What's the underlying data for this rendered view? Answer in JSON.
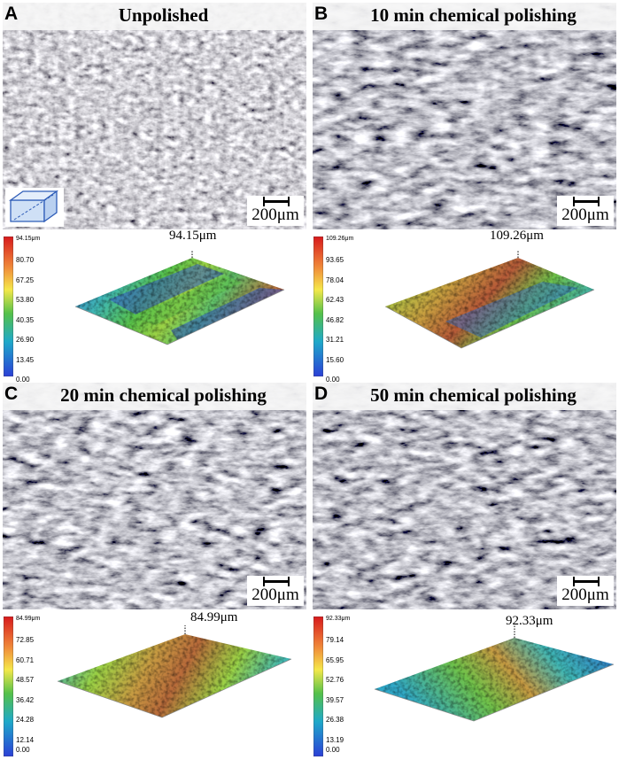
{
  "panels": [
    {
      "letter": "A",
      "title": "Unpolished",
      "scale": "200μm",
      "peak": "94.15μm",
      "colorbar_ticks": [
        "94.15μm",
        "80.70",
        "67.25",
        "53.80",
        "40.35",
        "26.90",
        "13.45",
        "0.00"
      ],
      "has_inset": true
    },
    {
      "letter": "B",
      "title": "10 min chemical polishing",
      "scale": "200μm",
      "peak": "109.26μm",
      "colorbar_ticks": [
        "109.26μm",
        "93.65",
        "78.04",
        "62.43",
        "46.82",
        "31.21",
        "15.60",
        "0.00"
      ],
      "has_inset": false
    },
    {
      "letter": "C",
      "title": "20 min chemical polishing",
      "scale": "200μm",
      "peak": "84.99μm",
      "colorbar_ticks": [
        "84.99μm",
        "72.85",
        "60.71",
        "48.57",
        "36.42",
        "24.28",
        "12.14",
        "0.00"
      ],
      "has_inset": false
    },
    {
      "letter": "D",
      "title": "50 min chemical polishing",
      "scale": "200μm",
      "peak": "92.33μm",
      "colorbar_ticks": [
        "92.33μm",
        "79.14",
        "65.95",
        "52.76",
        "39.57",
        "26.38",
        "13.19",
        "0.00"
      ],
      "has_inset": false
    }
  ],
  "icons": {
    "inset": "sample-geometry-icon"
  },
  "colors": {
    "colormap": [
      "#d7191c",
      "#fdae61",
      "#ffff4d",
      "#55c14a",
      "#1fa9c9",
      "#2b3fd6"
    ]
  }
}
